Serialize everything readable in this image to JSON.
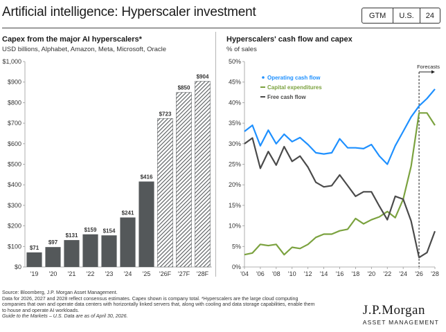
{
  "page": {
    "title": "Artificial intelligence: Hyperscaler investment",
    "badges": [
      "GTM",
      "U.S.",
      "24"
    ]
  },
  "left_panel": {
    "title": "Capex from the major AI hyperscalers*",
    "subtitle": "USD billions, Alphabet, Amazon, Meta, Microsoft, Oracle"
  },
  "right_panel": {
    "title": "Hyperscalers' cash flow and capex",
    "subtitle": "% of sales"
  },
  "chart_data": [
    {
      "type": "bar",
      "categories": [
        "'19",
        "'20",
        "'21",
        "'22",
        "'23",
        "'24",
        "'25",
        "'26F",
        "'27F",
        "'28F"
      ],
      "values": [
        71,
        97,
        131,
        159,
        154,
        241,
        416,
        723,
        850,
        904
      ],
      "data_labels": [
        "$71",
        "$97",
        "$131",
        "$159",
        "$154",
        "$241",
        "$416",
        "$723",
        "$850",
        "$904"
      ],
      "forecast": [
        false,
        false,
        false,
        false,
        false,
        false,
        false,
        true,
        true,
        true
      ],
      "ylim": [
        0,
        1000
      ],
      "yticks": [
        0,
        100,
        200,
        300,
        400,
        500,
        600,
        700,
        800,
        900,
        1000
      ],
      "ytick_labels": [
        "$0",
        "$100",
        "$200",
        "$300",
        "$400",
        "$500",
        "$600",
        "$700",
        "$800",
        "$900",
        "$1,000"
      ],
      "colors": {
        "actual": "#54585a",
        "forecast_hatch": "#54585a"
      }
    },
    {
      "type": "line",
      "x": [
        2004,
        2005,
        2006,
        2007,
        2008,
        2009,
        2010,
        2011,
        2012,
        2013,
        2014,
        2015,
        2016,
        2017,
        2018,
        2019,
        2020,
        2021,
        2022,
        2023,
        2024,
        2025,
        2026,
        2027,
        2028
      ],
      "series": [
        {
          "name": "Operating cash flow",
          "color": "#1e90ff",
          "values": [
            33,
            34.5,
            29.5,
            33.3,
            30,
            32.3,
            30.5,
            31.5,
            29.8,
            27.8,
            27.5,
            27.8,
            31.2,
            29,
            29,
            28.8,
            29.8,
            27,
            25,
            29.5,
            33,
            36.5,
            39.2,
            41,
            43.3
          ]
        },
        {
          "name": "Capital expenditures",
          "color": "#7ba23f",
          "values": [
            3,
            3.4,
            5.5,
            5.2,
            5.5,
            3,
            4.8,
            4.5,
            5.5,
            7.2,
            8,
            8,
            8.8,
            9.2,
            11.8,
            10.5,
            11.5,
            12.2,
            13.5,
            12,
            16.5,
            24.5,
            37.5,
            37.5,
            34.5
          ]
        },
        {
          "name": "Free cash flow",
          "color": "#4a4a4a",
          "values": [
            30,
            31.4,
            24,
            28.1,
            24.8,
            29.3,
            25.7,
            27,
            24.3,
            20.6,
            19.5,
            19.8,
            22.4,
            19.8,
            17.2,
            18.3,
            18.3,
            14.8,
            11.5,
            17.2,
            16.5,
            11.2,
            2.3,
            3.5,
            8.7
          ]
        }
      ],
      "ylim": [
        0,
        50
      ],
      "yticks": [
        0,
        5,
        10,
        15,
        20,
        25,
        30,
        35,
        40,
        45,
        50
      ],
      "ytick_labels": [
        "0%",
        "5%",
        "10%",
        "15%",
        "20%",
        "25%",
        "30%",
        "35%",
        "40%",
        "45%",
        "50%"
      ],
      "xticks": [
        2004,
        2006,
        2008,
        2010,
        2012,
        2014,
        2016,
        2018,
        2020,
        2022,
        2024,
        2026,
        2028
      ],
      "xtick_labels": [
        "'04",
        "'06",
        "'08",
        "'10",
        "'12",
        "'14",
        "'16",
        "'18",
        "'20",
        "'22",
        "'24",
        "'26",
        "'28"
      ],
      "forecast_start": 2026,
      "annotation": "Forecasts"
    }
  ],
  "footnote": {
    "lines": [
      "Source: Bloomberg, J.P. Morgan Asset Management.",
      "Data for 2026, 2027 and 2028 reflect consensus estimates. Capex shown is company total. *Hyperscalers are the large cloud computing",
      "companies that own and operate data centers with horizontally linked servers that, along with cooling and data storage capabilities, enable them",
      "to house and operate AI workloads."
    ],
    "guide": "Guide to the Markets – U.S. Data are as of April 30, 2026."
  },
  "logo": {
    "line1": "J.P.Morgan",
    "line2": "ASSET MANAGEMENT"
  }
}
